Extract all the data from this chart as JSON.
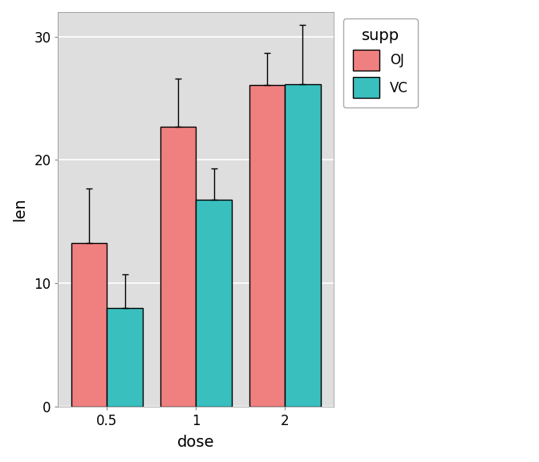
{
  "doses": [
    "0.5",
    "1",
    "2"
  ],
  "OJ_means": [
    13.23,
    22.7,
    26.06
  ],
  "VC_means": [
    7.98,
    16.77,
    26.14
  ],
  "OJ_errors": [
    4.46,
    3.91,
    2.65
  ],
  "VC_errors": [
    2.75,
    2.52,
    4.8
  ],
  "OJ_color": "#F08080",
  "VC_color": "#3ABFBF",
  "bar_edge_color": "black",
  "plot_bg_color": "#DEDEDE",
  "legend_bg_color": "#FFFFFF",
  "grid_color": "#FFFFFF",
  "xlabel": "dose",
  "ylabel": "len",
  "ylim": [
    0,
    32
  ],
  "yticks": [
    0,
    10,
    20,
    30
  ],
  "legend_title": "supp",
  "legend_labels": [
    "OJ",
    "VC"
  ],
  "bar_width": 0.4,
  "error_capsize": 3,
  "error_linewidth": 1.0,
  "xlabel_fontsize": 14,
  "ylabel_fontsize": 14,
  "tick_fontsize": 12,
  "legend_title_fontsize": 14,
  "legend_fontsize": 12
}
